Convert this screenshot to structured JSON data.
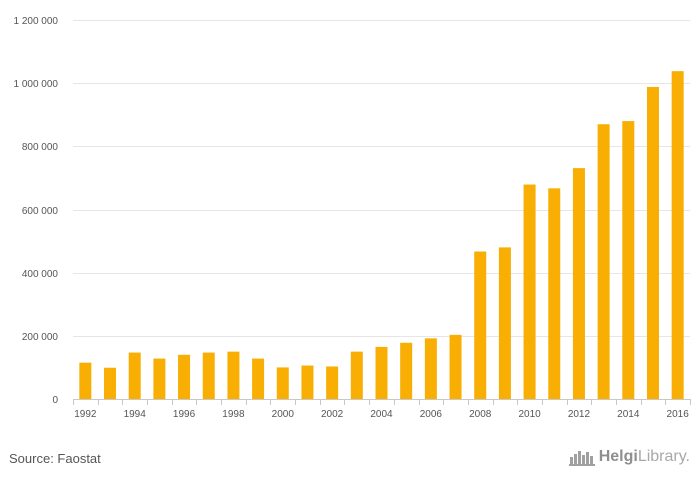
{
  "chart_data": {
    "type": "bar",
    "categories": [
      "1992",
      "1993",
      "1994",
      "1995",
      "1996",
      "1997",
      "1998",
      "1999",
      "2000",
      "2001",
      "2002",
      "2003",
      "2004",
      "2005",
      "2006",
      "2007",
      "2008",
      "2009",
      "2010",
      "2011",
      "2012",
      "2013",
      "2014",
      "2015",
      "2016"
    ],
    "values": [
      115000,
      99000,
      147000,
      128000,
      140000,
      147000,
      150000,
      128000,
      100000,
      106000,
      103000,
      150000,
      165000,
      178000,
      192000,
      203000,
      467000,
      480000,
      679000,
      667000,
      731000,
      870000,
      880000,
      988000,
      1038000
    ],
    "x_tick_labels": [
      "1992",
      "1994",
      "1996",
      "1998",
      "2000",
      "2002",
      "2004",
      "2006",
      "2008",
      "2010",
      "2012",
      "2014",
      "2016"
    ],
    "y_tick_labels": [
      "0",
      "200 000",
      "400 000",
      "600 000",
      "800 000",
      "1 000 000",
      "1 200 000"
    ],
    "ylim": [
      0,
      1200000
    ],
    "grid": true,
    "bar_color": "#f8ae02",
    "title": "",
    "xlabel": "",
    "ylabel": ""
  },
  "footer": {
    "source_text": "Source: Faostat",
    "brand_strong": "Helgi",
    "brand_light": "Library.",
    "brand_icon": "city-skyline-icon"
  }
}
